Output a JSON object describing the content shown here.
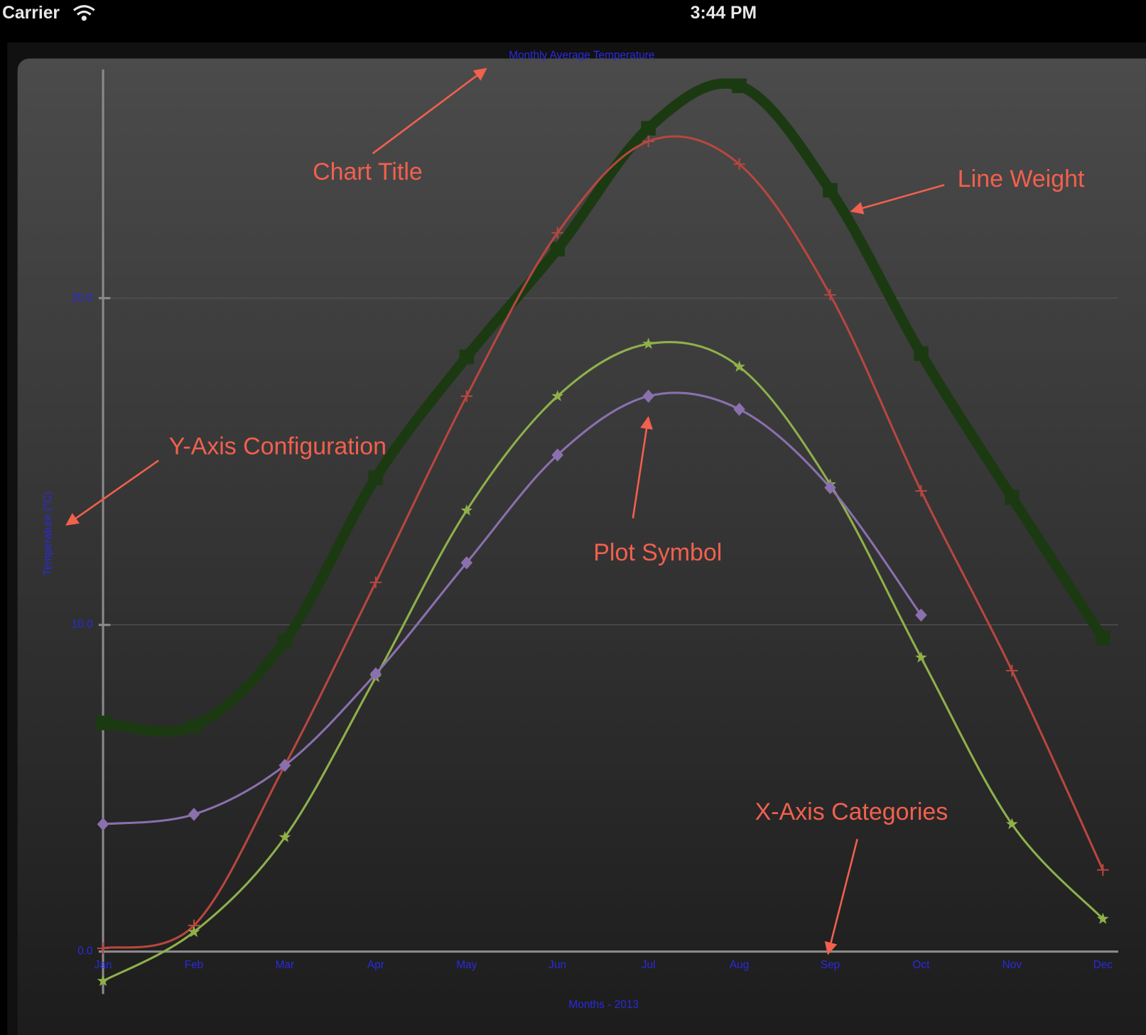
{
  "status_bar": {
    "carrier": "Carrier",
    "time": "3:44 PM"
  },
  "chart_data": {
    "type": "line",
    "title": "Monthly Average Temperature",
    "x_label": "Months - 2013",
    "y_label": "Temperature (°C)",
    "categories": [
      "Jan",
      "Feb",
      "Mar",
      "Apr",
      "May",
      "Jun",
      "Jul",
      "Aug",
      "Sep",
      "Oct",
      "Nov",
      "Dec"
    ],
    "ylim": [
      -1.3,
      27
    ],
    "yticks": [
      {
        "value": 0,
        "label": "0.0"
      },
      {
        "value": 10,
        "label": "10.0"
      },
      {
        "value": 20,
        "label": "20.0"
      }
    ],
    "grid": true,
    "smooth": true,
    "series": [
      {
        "color": "#1b3a12",
        "line_width": 14,
        "marker": "square",
        "values": [
          7.0,
          6.9,
          9.5,
          14.5,
          18.2,
          21.5,
          25.2,
          26.5,
          23.3,
          18.3,
          13.9,
          9.6
        ]
      },
      {
        "color": "#b8463f",
        "line_width": 3,
        "marker": "plus",
        "values": [
          0.1,
          0.8,
          5.7,
          11.3,
          17.0,
          22.0,
          24.8,
          24.1,
          20.1,
          14.1,
          8.6,
          2.5
        ]
      },
      {
        "color": "#8fb04a",
        "line_width": 3,
        "marker": "star",
        "values": [
          -0.9,
          0.6,
          3.5,
          8.4,
          13.5,
          17.0,
          18.6,
          17.9,
          14.3,
          9.0,
          3.9,
          1.0
        ]
      },
      {
        "color": "#8a70ae",
        "line_width": 3,
        "marker": "diamond",
        "values": [
          3.9,
          4.2,
          5.7,
          8.5,
          11.9,
          15.2,
          17.0,
          16.6,
          14.2,
          10.3,
          null,
          null
        ]
      }
    ]
  },
  "annotations": [
    "Chart Title",
    "Line Weight",
    "Y-Axis Configuration",
    "Plot Symbol",
    "X-Axis Categories"
  ]
}
